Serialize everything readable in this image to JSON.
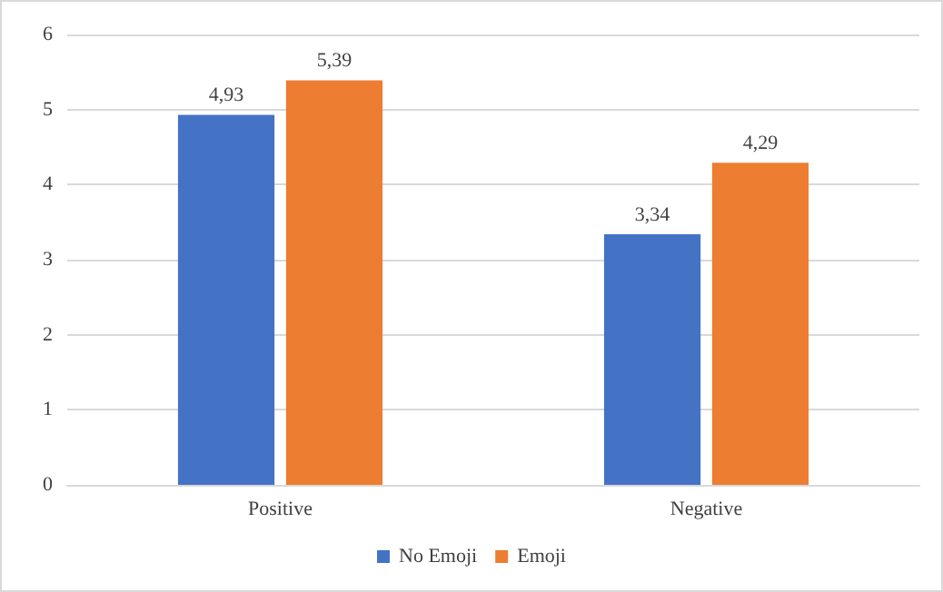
{
  "chart_data": {
    "type": "bar",
    "categories": [
      "Positive",
      "Negative"
    ],
    "series": [
      {
        "name": "No Emoji",
        "color": "#4472c4",
        "values": [
          4.93,
          3.34
        ],
        "value_labels": [
          "4,93",
          "3,34"
        ]
      },
      {
        "name": "Emoji",
        "color": "#ed7d31",
        "values": [
          5.39,
          4.29
        ],
        "value_labels": [
          "5,39",
          "4,29"
        ]
      }
    ],
    "ylim": [
      0,
      6
    ],
    "yticks": [
      0,
      1,
      2,
      3,
      4,
      5,
      6
    ],
    "grid": "y",
    "legend": "bottom"
  }
}
